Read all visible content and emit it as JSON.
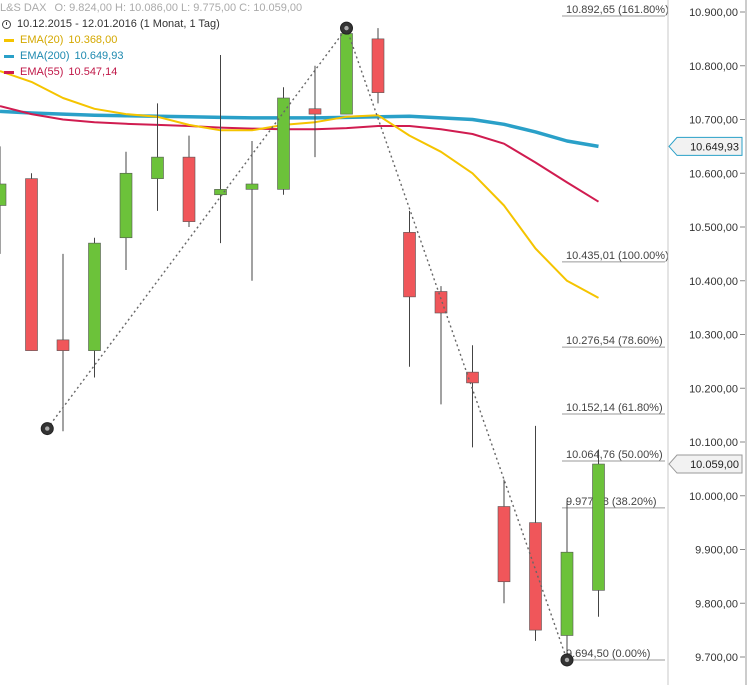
{
  "header": {
    "symbol": "L&S DAX",
    "ohlc": "O: 9.824,00  H: 10.086,00  L: 9.775,00  C: 10.059,00",
    "range": "10.12.2015 - 12.01.2016 (1 Monat, 1 Tag)"
  },
  "legend": [
    {
      "label": "EMA(20)",
      "value": "10.368,00",
      "color": "#f5c400"
    },
    {
      "label": "EMA(200)",
      "value": "10.649,93",
      "color": "#2aa0c8"
    },
    {
      "label": "EMA(55)",
      "value": "10.547,14",
      "color": "#d01c50"
    }
  ],
  "chart_data": {
    "type": "candlestick",
    "ylim": [
      9680,
      10920
    ],
    "y_ticks": [
      {
        "v": 9700,
        "label": "9.700,00"
      },
      {
        "v": 9800,
        "label": "9.800,00"
      },
      {
        "v": 9900,
        "label": "9.900,00"
      },
      {
        "v": 10000,
        "label": "10.000,00"
      },
      {
        "v": 10100,
        "label": "10.100,00"
      },
      {
        "v": 10200,
        "label": "10.200,00"
      },
      {
        "v": 10300,
        "label": "10.300,00"
      },
      {
        "v": 10400,
        "label": "10.400,00"
      },
      {
        "v": 10500,
        "label": "10.500,00"
      },
      {
        "v": 10600,
        "label": "10.600,00"
      },
      {
        "v": 10700,
        "label": "10.700,00"
      },
      {
        "v": 10800,
        "label": "10.800,00"
      },
      {
        "v": 10900,
        "label": "10.900,00"
      }
    ],
    "candles": [
      {
        "o": 10540,
        "h": 10650,
        "l": 10450,
        "c": 10580
      },
      {
        "o": 10590,
        "h": 10600,
        "l": 10270,
        "c": 10270
      },
      {
        "o": 10290,
        "h": 10450,
        "l": 10120,
        "c": 10270
      },
      {
        "o": 10270,
        "h": 10480,
        "l": 10220,
        "c": 10470
      },
      {
        "o": 10480,
        "h": 10640,
        "l": 10420,
        "c": 10600
      },
      {
        "o": 10590,
        "h": 10730,
        "l": 10530,
        "c": 10630
      },
      {
        "o": 10630,
        "h": 10670,
        "l": 10500,
        "c": 10510
      },
      {
        "o": 10560,
        "h": 10820,
        "l": 10470,
        "c": 10570
      },
      {
        "o": 10570,
        "h": 10660,
        "l": 10400,
        "c": 10580
      },
      {
        "o": 10570,
        "h": 10760,
        "l": 10560,
        "c": 10740
      },
      {
        "o": 10720,
        "h": 10800,
        "l": 10630,
        "c": 10710
      },
      {
        "o": 10710,
        "h": 10870,
        "l": 10710,
        "c": 10860
      },
      {
        "o": 10850,
        "h": 10870,
        "l": 10730,
        "c": 10750
      },
      {
        "o": 10490,
        "h": 10530,
        "l": 10240,
        "c": 10370
      },
      {
        "o": 10380,
        "h": 10390,
        "l": 10170,
        "c": 10340
      },
      {
        "o": 10230,
        "h": 10280,
        "l": 10090,
        "c": 10210
      },
      {
        "o": 9980,
        "h": 10030,
        "l": 9800,
        "c": 9840
      },
      {
        "o": 9950,
        "h": 10130,
        "l": 9730,
        "c": 9750
      },
      {
        "o": 9740,
        "h": 9990,
        "l": 9695,
        "c": 9895
      },
      {
        "o": 9824,
        "h": 10086,
        "l": 9775,
        "c": 10059
      }
    ],
    "ema20": [
      10790,
      10770,
      10740,
      10720,
      10710,
      10705,
      10690,
      10680,
      10680,
      10690,
      10695,
      10705,
      10708,
      10670,
      10640,
      10600,
      10540,
      10460,
      10400,
      10368
    ],
    "ema55": [
      10725,
      10710,
      10700,
      10695,
      10692,
      10690,
      10688,
      10685,
      10683,
      10682,
      10682,
      10684,
      10688,
      10688,
      10682,
      10673,
      10655,
      10620,
      10583,
      10547
    ],
    "ema200": [
      10715,
      10712,
      10710,
      10708,
      10707,
      10706,
      10705,
      10704,
      10703,
      10703,
      10703,
      10704,
      10705,
      10706,
      10703,
      10700,
      10691,
      10677,
      10660,
      10650
    ],
    "swings": [
      {
        "i": 1.5,
        "v": 10125
      },
      {
        "i": 11,
        "v": 10870
      },
      {
        "i": 18,
        "v": 9694.5
      }
    ],
    "fib_levels": [
      {
        "v": 10892.65,
        "label": "10.892,65 (161.80%)"
      },
      {
        "v": 10435.01,
        "label": "10.435,01 (100.00%)"
      },
      {
        "v": 10276.54,
        "label": "10.276,54 (78.60%)"
      },
      {
        "v": 10152.14,
        "label": "10.152,14 (61.80%)"
      },
      {
        "v": 10064.76,
        "label": "10.064,76 (50.00%)"
      },
      {
        "v": 9977.38,
        "label": "9.977,38 (38.20%)"
      },
      {
        "v": 9694.5,
        "label": "9.694,50 (0.00%)"
      }
    ],
    "price_badges": [
      {
        "v": 10649.93,
        "label": "10.649,93",
        "color": "#2aa0c8"
      },
      {
        "v": 10059,
        "label": "10.059,00",
        "color": "#999999"
      }
    ]
  },
  "colors": {
    "up": "#6cc23a",
    "down": "#f0565a",
    "grid": "#bdbdbd"
  }
}
